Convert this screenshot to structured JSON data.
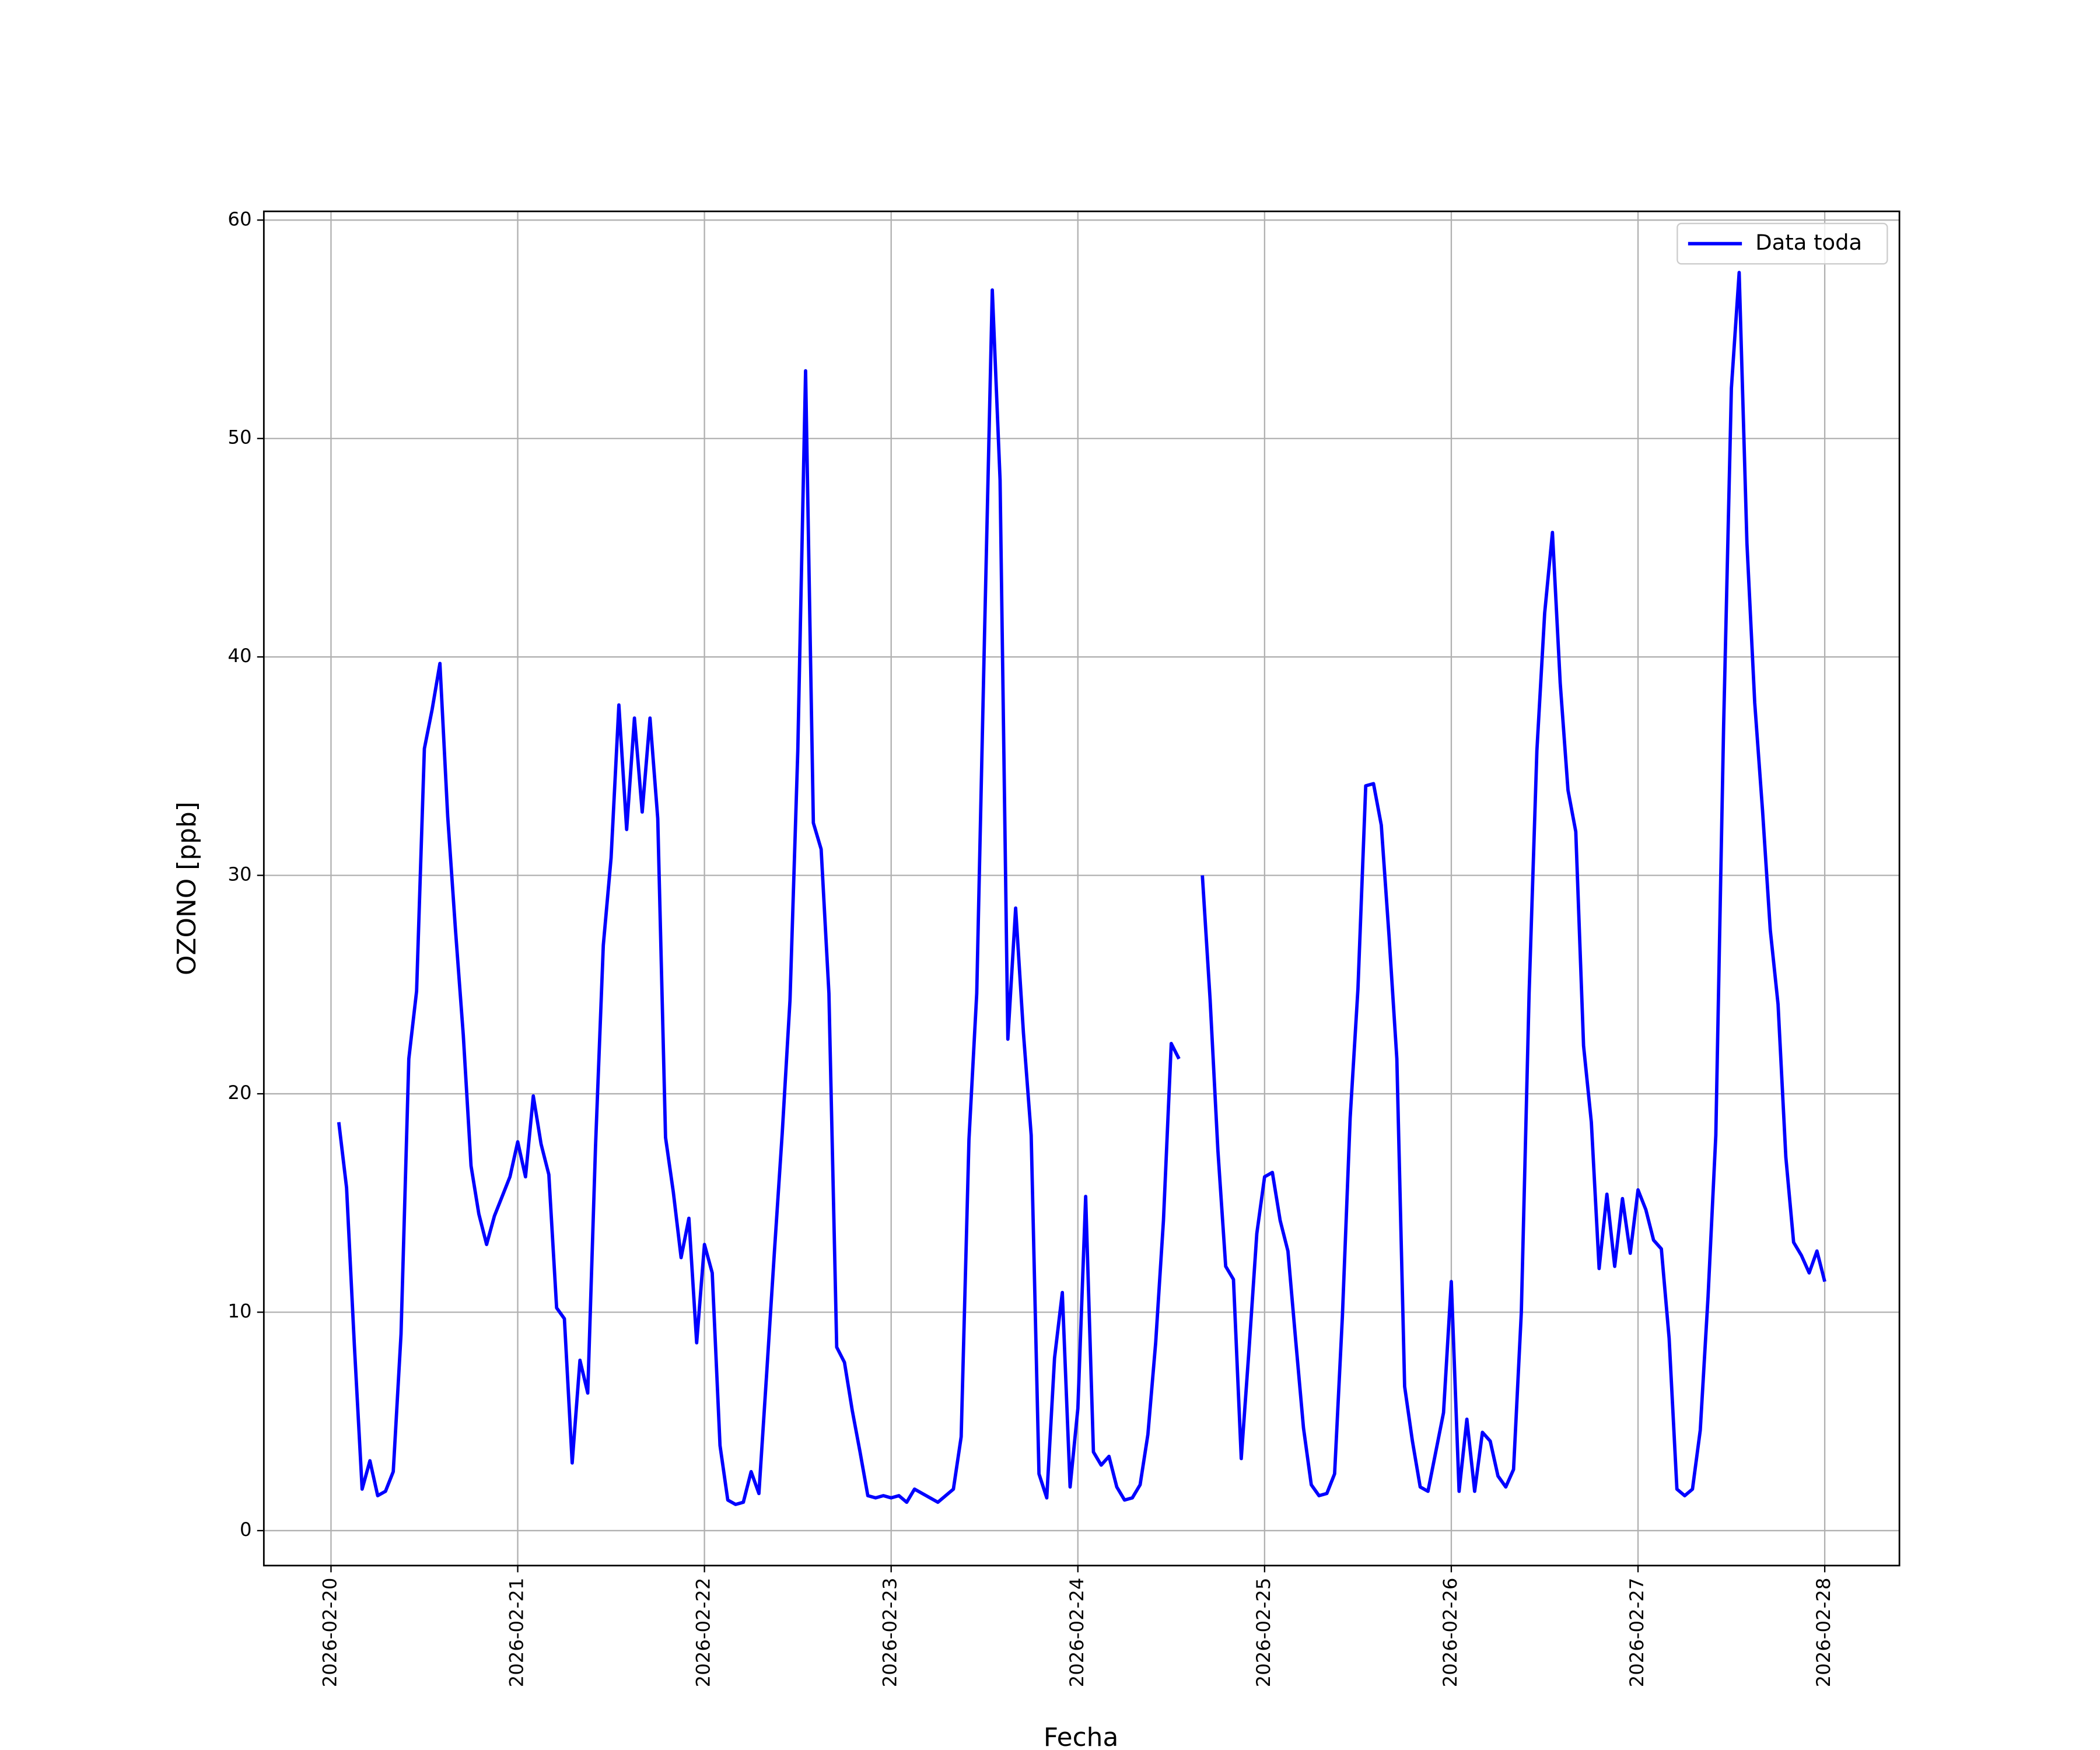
{
  "chart_data": {
    "type": "line",
    "xlabel": "Fecha",
    "ylabel": "OZONO [ppb]",
    "legend": "upper right",
    "grid": true,
    "x": [
      "2026-02-20T01:00",
      "2026-02-20T02:00",
      "2026-02-20T03:00",
      "2026-02-20T04:00",
      "2026-02-20T05:00",
      "2026-02-20T06:00",
      "2026-02-20T07:00",
      "2026-02-20T08:00",
      "2026-02-20T09:00",
      "2026-02-20T10:00",
      "2026-02-20T11:00",
      "2026-02-20T12:00",
      "2026-02-20T13:00",
      "2026-02-20T14:00",
      "2026-02-20T15:00",
      "2026-02-20T16:00",
      "2026-02-20T17:00",
      "2026-02-20T18:00",
      "2026-02-20T19:00",
      "2026-02-20T20:00",
      "2026-02-20T21:00",
      "2026-02-20T22:00",
      "2026-02-20T23:00",
      "2026-02-21T00:00",
      "2026-02-21T01:00",
      "2026-02-21T02:00",
      "2026-02-21T03:00",
      "2026-02-21T04:00",
      "2026-02-21T05:00",
      "2026-02-21T06:00",
      "2026-02-21T07:00",
      "2026-02-21T08:00",
      "2026-02-21T09:00",
      "2026-02-21T10:00",
      "2026-02-21T11:00",
      "2026-02-21T12:00",
      "2026-02-21T13:00",
      "2026-02-21T14:00",
      "2026-02-21T15:00",
      "2026-02-21T16:00",
      "2026-02-21T17:00",
      "2026-02-21T18:00",
      "2026-02-21T19:00",
      "2026-02-21T20:00",
      "2026-02-21T21:00",
      "2026-02-21T22:00",
      "2026-02-21T23:00",
      "2026-02-22T00:00",
      "2026-02-22T01:00",
      "2026-02-22T02:00",
      "2026-02-22T03:00",
      "2026-02-22T04:00",
      "2026-02-22T05:00",
      "2026-02-22T06:00",
      "2026-02-22T07:00",
      "2026-02-22T08:00",
      "2026-02-22T09:00",
      "2026-02-22T10:00",
      "2026-02-22T11:00",
      "2026-02-22T12:00",
      "2026-02-22T13:00",
      "2026-02-22T14:00",
      "2026-02-22T15:00",
      "2026-02-22T16:00",
      "2026-02-22T17:00",
      "2026-02-22T18:00",
      "2026-02-22T19:00",
      "2026-02-22T20:00",
      "2026-02-22T21:00",
      "2026-02-22T22:00",
      "2026-02-22T23:00",
      "2026-02-23T00:00",
      "2026-02-23T01:00",
      "2026-02-23T02:00",
      "2026-02-23T03:00",
      "2026-02-23T04:00",
      "2026-02-23T05:00",
      "2026-02-23T06:00",
      "2026-02-23T07:00",
      "2026-02-23T08:00",
      "2026-02-23T09:00",
      "2026-02-23T10:00",
      "2026-02-23T11:00",
      "2026-02-23T12:00",
      "2026-02-23T13:00",
      "2026-02-23T14:00",
      "2026-02-23T15:00",
      "2026-02-23T16:00",
      "2026-02-23T17:00",
      "2026-02-23T18:00",
      "2026-02-23T19:00",
      "2026-02-23T20:00",
      "2026-02-23T21:00",
      "2026-02-23T22:00",
      "2026-02-23T23:00",
      "2026-02-24T00:00",
      "2026-02-24T01:00",
      "2026-02-24T02:00",
      "2026-02-24T03:00",
      "2026-02-24T04:00",
      "2026-02-24T05:00",
      "2026-02-24T06:00",
      "2026-02-24T07:00",
      "2026-02-24T08:00",
      "2026-02-24T09:00",
      "2026-02-24T10:00",
      "2026-02-24T11:00",
      "2026-02-24T12:00",
      "2026-02-24T13:00",
      "2026-02-24T14:00",
      "2026-02-24T15:00",
      "2026-02-24T16:00",
      "2026-02-24T17:00",
      "2026-02-24T18:00",
      "2026-02-24T19:00",
      "2026-02-24T20:00",
      "2026-02-24T21:00",
      "2026-02-24T22:00",
      "2026-02-24T23:00",
      "2026-02-25T00:00",
      "2026-02-25T01:00",
      "2026-02-25T02:00",
      "2026-02-25T03:00",
      "2026-02-25T04:00",
      "2026-02-25T05:00",
      "2026-02-25T06:00",
      "2026-02-25T07:00",
      "2026-02-25T08:00",
      "2026-02-25T09:00",
      "2026-02-25T10:00",
      "2026-02-25T11:00",
      "2026-02-25T12:00",
      "2026-02-25T13:00",
      "2026-02-25T14:00",
      "2026-02-25T15:00",
      "2026-02-25T16:00",
      "2026-02-25T17:00",
      "2026-02-25T18:00",
      "2026-02-25T19:00",
      "2026-02-25T20:00",
      "2026-02-25T21:00",
      "2026-02-25T22:00",
      "2026-02-25T23:00",
      "2026-02-26T00:00",
      "2026-02-26T01:00",
      "2026-02-26T02:00",
      "2026-02-26T03:00",
      "2026-02-26T04:00",
      "2026-02-26T05:00",
      "2026-02-26T06:00",
      "2026-02-26T07:00",
      "2026-02-26T08:00",
      "2026-02-26T09:00",
      "2026-02-26T10:00",
      "2026-02-26T11:00",
      "2026-02-26T12:00",
      "2026-02-26T13:00",
      "2026-02-26T14:00",
      "2026-02-26T15:00",
      "2026-02-26T16:00",
      "2026-02-26T17:00",
      "2026-02-26T18:00",
      "2026-02-26T19:00",
      "2026-02-26T20:00",
      "2026-02-26T21:00",
      "2026-02-26T22:00",
      "2026-02-26T23:00",
      "2026-02-27T00:00",
      "2026-02-27T01:00",
      "2026-02-27T02:00",
      "2026-02-27T03:00",
      "2026-02-27T04:00",
      "2026-02-27T05:00",
      "2026-02-27T06:00",
      "2026-02-27T07:00",
      "2026-02-27T08:00",
      "2026-02-27T09:00",
      "2026-02-27T10:00",
      "2026-02-27T11:00",
      "2026-02-27T12:00",
      "2026-02-27T13:00",
      "2026-02-27T14:00",
      "2026-02-27T15:00",
      "2026-02-27T16:00",
      "2026-02-27T17:00",
      "2026-02-27T18:00",
      "2026-02-27T19:00",
      "2026-02-27T20:00",
      "2026-02-27T21:00",
      "2026-02-27T22:00",
      "2026-02-27T23:00",
      "2026-02-28T00:00"
    ],
    "series": [
      {
        "name": "Data toda",
        "color": "#0000ff",
        "values": [
          18.7,
          15.7,
          8.5,
          1.9,
          3.2,
          1.6,
          1.8,
          2.7,
          9,
          21.6,
          24.7,
          35.8,
          37.6,
          39.7,
          32.7,
          27.5,
          22.7,
          16.7,
          14.5,
          13.1,
          14.4,
          15.3,
          16.2,
          17.8,
          16.2,
          19.9,
          17.7,
          16.3,
          10.2,
          9.7,
          3.1,
          7.8,
          6.3,
          17.6,
          26.8,
          30.8,
          37.8,
          32.1,
          37.2,
          32.9,
          37.2,
          32.6,
          18,
          15.5,
          12.5,
          14.3,
          8.6,
          13.1,
          11.8,
          3.9,
          1.4,
          1.2,
          1.3,
          2.7,
          1.7,
          7.2,
          12.8,
          18.2,
          24.3,
          35.7,
          53.1,
          32.4,
          31.2,
          24.6,
          8.4,
          7.7,
          5.5,
          3.6,
          1.6,
          1.5,
          1.6,
          1.5,
          1.6,
          1.3,
          1.9,
          1.7,
          1.5,
          1.3,
          1.6,
          1.9,
          4.3,
          17.9,
          24.6,
          41,
          56.8,
          48.1,
          22.5,
          28.5,
          22.8,
          18.1,
          2.6,
          1.5,
          7.9,
          10.9,
          2,
          5.6,
          15.3,
          3.6,
          3,
          3.4,
          2,
          1.4,
          1.5,
          2.1,
          4.4,
          8.6,
          14.2,
          22.3,
          21.6,
          null,
          null,
          30,
          24.3,
          17.4,
          12.1,
          11.5,
          3.3,
          8.3,
          13.6,
          16.2,
          16.4,
          14.2,
          12.8,
          8.7,
          4.7,
          2.1,
          1.6,
          1.7,
          2.6,
          9.8,
          18.9,
          24.8,
          34.1,
          34.2,
          32.3,
          27.2,
          21.6,
          6.6,
          4.1,
          2,
          1.8,
          3.6,
          5.4,
          11.4,
          1.8,
          5.1,
          1.8,
          4.5,
          4.1,
          2.5,
          2,
          2.8,
          10,
          24.6,
          35.7,
          42,
          45.7,
          38.8,
          33.9,
          32,
          22.2,
          18.7,
          12,
          15.4,
          12.1,
          15.2,
          12.7,
          15.6,
          14.7,
          13.3,
          12.9,
          8.8,
          1.9,
          1.6,
          1.9,
          4.6,
          10.7,
          18.1,
          36.8,
          52.3,
          57.6,
          45.2,
          37.9,
          33,
          27.5,
          24.1,
          17.1,
          13.2,
          12.6,
          11.8,
          12.8,
          11.4
        ]
      }
    ],
    "xlim": [
      "2026-02-19T15:22",
      "2026-02-28T09:36"
    ],
    "xticks": [
      "2026-02-20",
      "2026-02-21",
      "2026-02-22",
      "2026-02-23",
      "2026-02-24",
      "2026-02-25",
      "2026-02-26",
      "2026-02-27",
      "2026-02-28"
    ],
    "ylim": [
      -1.6,
      60.4
    ],
    "yticks": [
      0,
      10,
      20,
      30,
      40,
      50,
      60
    ]
  }
}
